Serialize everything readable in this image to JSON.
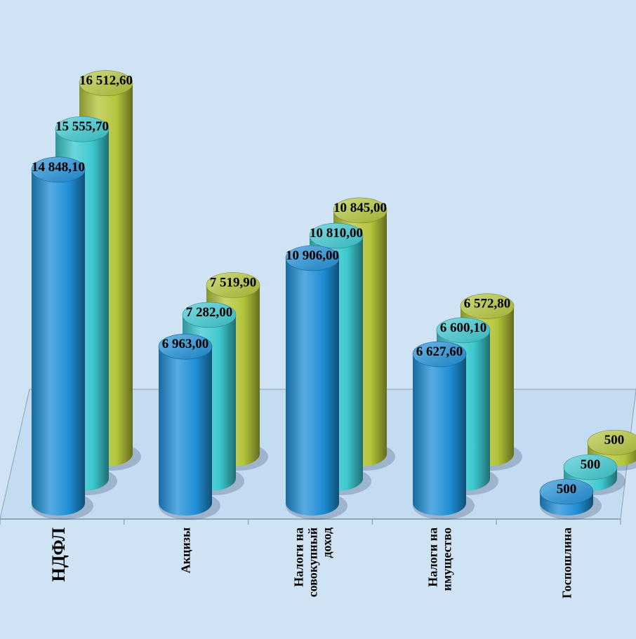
{
  "chart_data": {
    "type": "bar",
    "title": "",
    "xlabel": "",
    "ylabel": "",
    "categories": [
      [
        "НДФЛ"
      ],
      [
        "Акцизы"
      ],
      [
        "Налоги на",
        "совокупный",
        "доход"
      ],
      [
        "Налоги на",
        "имущество"
      ],
      [
        "Госпошлина"
      ]
    ],
    "series": [
      {
        "color": "#1f8fd6",
        "values": [
          14848.1,
          6963.0,
          10906.0,
          6627.6,
          500
        ],
        "labels": [
          "14 848,10",
          "6 963,00",
          "10 906,00",
          "6 627,60",
          "500"
        ]
      },
      {
        "color": "#3cc8cf",
        "values": [
          15555.7,
          7282.0,
          10810.0,
          6600.1,
          500
        ],
        "labels": [
          "15 555,70",
          "7 282,00",
          "10 810,00",
          "6 600,10",
          "500"
        ]
      },
      {
        "color": "#b4c43a",
        "values": [
          16512.6,
          7519.9,
          10845.0,
          6572.8,
          500
        ],
        "labels": [
          "16 512,60",
          "7 519,90",
          "10 845,00",
          "6 572,80",
          "500"
        ]
      }
    ],
    "style": "3d-cylinder",
    "legend": "none",
    "grid": false
  }
}
